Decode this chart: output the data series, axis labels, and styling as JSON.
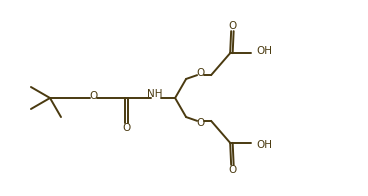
{
  "bg_color": "#ffffff",
  "line_color": "#4a3a10",
  "text_color": "#4a3a10",
  "line_width": 1.4,
  "font_size": 7.5,
  "figsize": [
    3.68,
    1.96
  ],
  "dpi": 100,
  "xlim": [
    0,
    368
  ],
  "ylim": [
    0,
    196
  ]
}
